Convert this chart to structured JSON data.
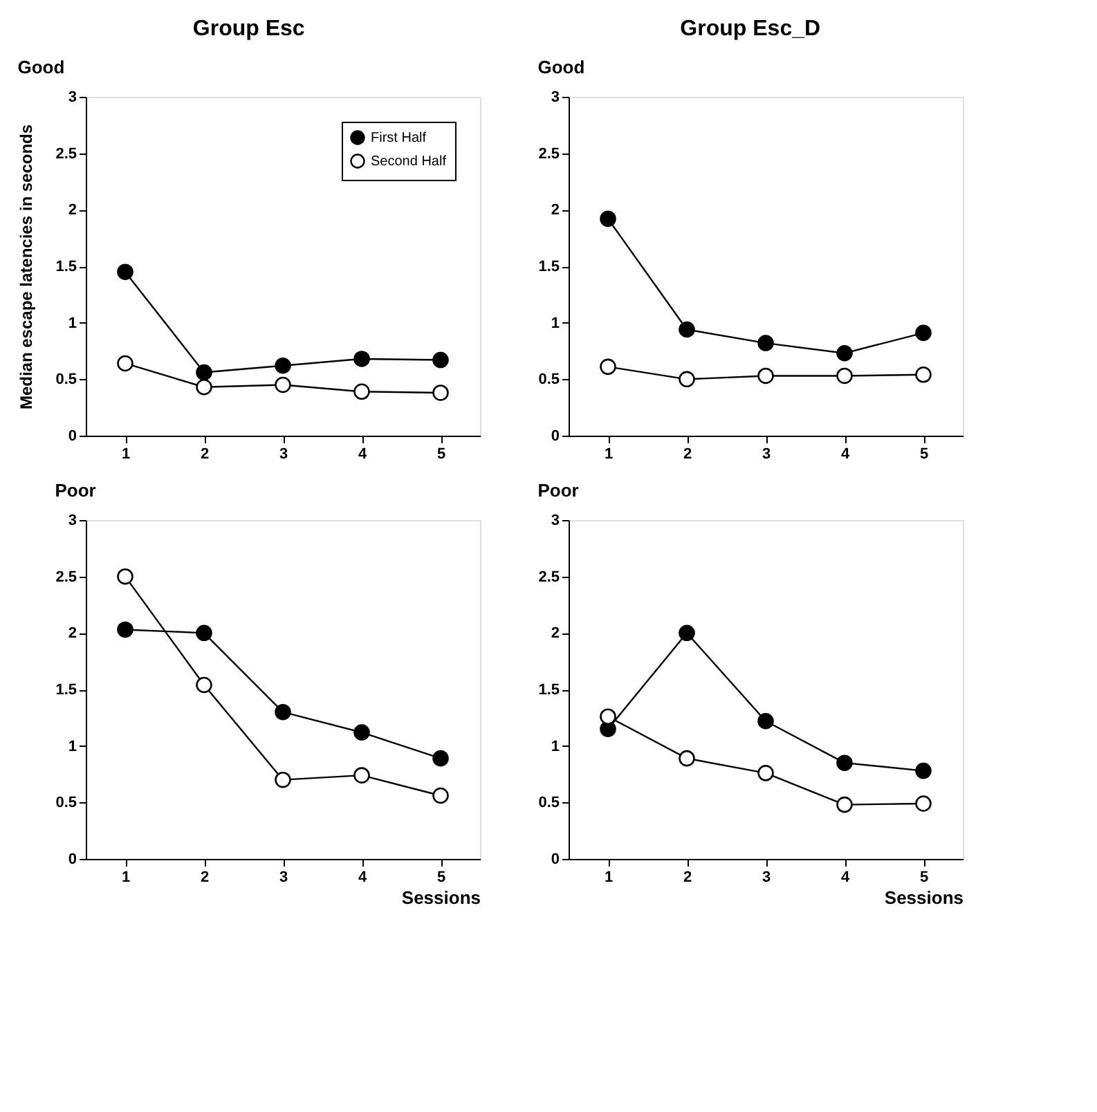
{
  "chart_data": [
    {
      "type": "line",
      "title": "Group Esc",
      "subtitle": "Good",
      "ylabel": "Median escape latencies in seconds",
      "categories": [
        "1",
        "2",
        "3",
        "4",
        "5"
      ],
      "ylim": [
        0,
        3
      ],
      "yticks": [
        0,
        0.5,
        1,
        1.5,
        2,
        2.5,
        3
      ],
      "grid": false,
      "marker": "circle",
      "legend": "top right",
      "series": [
        {
          "name": "First Half",
          "color": "#000000",
          "values": [
            1.45,
            0.56,
            0.62,
            0.68,
            0.67
          ]
        },
        {
          "name": "Second Half",
          "color": "#000000",
          "values": [
            0.64,
            0.43,
            0.45,
            0.39,
            0.38
          ]
        }
      ]
    },
    {
      "type": "line",
      "title": "Group Esc_D",
      "subtitle": "Good",
      "categories": [
        "1",
        "2",
        "3",
        "4",
        "5"
      ],
      "ylim": [
        0,
        3
      ],
      "yticks": [
        0,
        0.5,
        1,
        1.5,
        2,
        2.5,
        3
      ],
      "grid": false,
      "marker": "circle",
      "series": [
        {
          "color": "#000000",
          "values": [
            1.92,
            0.94,
            0.82,
            0.73,
            0.91
          ]
        },
        {
          "color": "#000000",
          "values": [
            0.61,
            0.5,
            0.53,
            0.53,
            0.54
          ]
        }
      ]
    },
    {
      "type": "line",
      "title": "Poor",
      "xlabel": "Sessions",
      "categories": [
        "1",
        "2",
        "3",
        "4",
        "5"
      ],
      "ylim": [
        0,
        3
      ],
      "yticks": [
        0,
        0.5,
        1,
        1.5,
        2,
        2.5,
        3
      ],
      "grid": false,
      "marker": "circle",
      "series": [
        {
          "color": "#000000",
          "values": [
            2.03,
            2.0,
            1.3,
            1.12,
            0.89
          ]
        },
        {
          "color": "#000000",
          "values": [
            2.5,
            1.54,
            0.7,
            0.74,
            0.56
          ]
        }
      ]
    },
    {
      "type": "line",
      "title": "Poor",
      "xlabel": "Sessions",
      "categories": [
        "1",
        "2",
        "3",
        "4",
        "5"
      ],
      "ylim": [
        0,
        3
      ],
      "yticks": [
        0,
        0.5,
        1,
        1.5,
        2,
        2.5,
        3
      ],
      "grid": false,
      "marker": "circle",
      "series": [
        {
          "color": "#000000",
          "values": [
            1.15,
            2.0,
            1.22,
            0.85,
            0.78
          ]
        },
        {
          "color": "#000000",
          "values": [
            1.26,
            0.89,
            0.76,
            0.48,
            0.49
          ]
        }
      ]
    }
  ]
}
